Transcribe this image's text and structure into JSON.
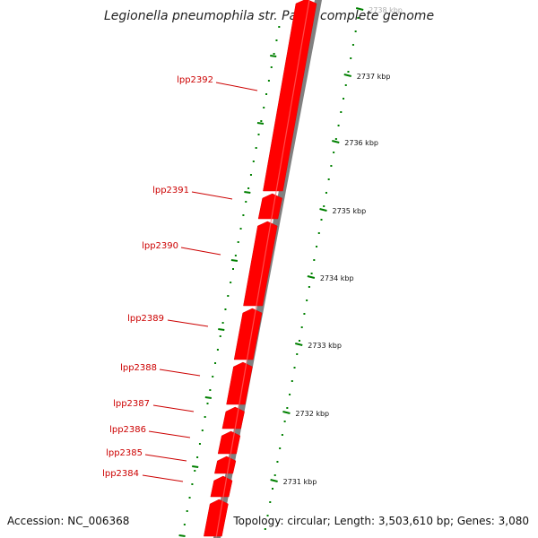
{
  "title": "Legionella pneumophila str. Paris, complete genome",
  "footer": {
    "accession": "Accession: NC_006368",
    "topology": "Topology: circular; Length: 3,503,610 bp; Genes: 3,080"
  },
  "colors": {
    "gene": "#ff0000",
    "gene_edge": "#ffffff",
    "backbone": "#808080",
    "tick": "#008000",
    "label": "#cc0000"
  },
  "scale_ticks": [
    "2738 kbp",
    "2737 kbp",
    "2736 kbp",
    "2735 kbp",
    "2734 kbp",
    "2733 kbp",
    "2732 kbp",
    "2731 kbp"
  ],
  "genes": [
    "lpp2392",
    "lpp2391",
    "lpp2390",
    "lpp2389",
    "lpp2388",
    "lpp2387",
    "lpp2386",
    "lpp2385",
    "lpp2384"
  ]
}
